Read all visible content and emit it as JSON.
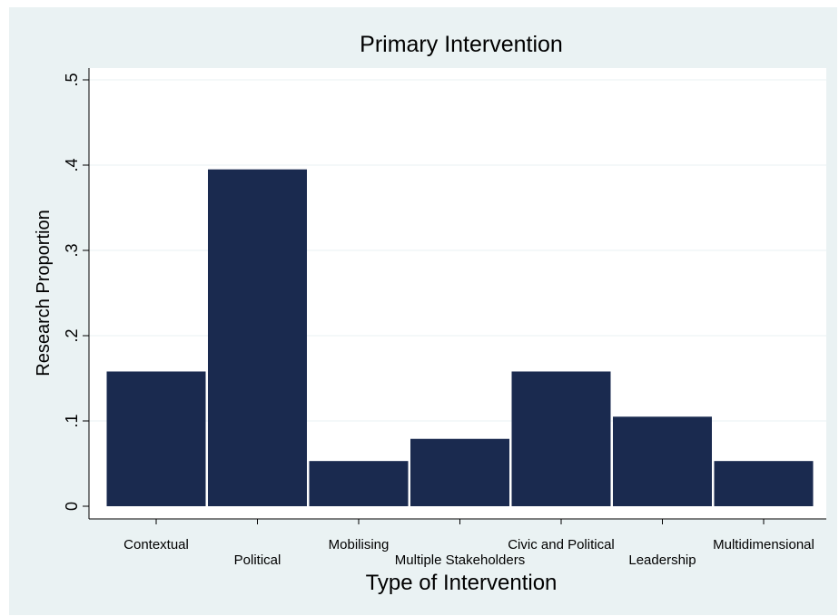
{
  "chart_data": {
    "type": "bar",
    "title": "Primary Intervention",
    "xlabel": "Type of Intervention",
    "ylabel": "Research Proportion",
    "categories": [
      "Contextual",
      "Political",
      "Mobilising",
      "Multiple Stakeholders",
      "Civic and Political",
      "Leadership",
      "Multidimensional"
    ],
    "values": [
      0.158,
      0.395,
      0.053,
      0.079,
      0.158,
      0.105,
      0.053
    ],
    "ylim": [
      0,
      0.5
    ],
    "yticks": [
      0,
      0.1,
      0.2,
      0.3,
      0.4,
      0.5
    ],
    "ytick_labels": [
      "0",
      ".1",
      ".2",
      ".3",
      ".4",
      ".5"
    ],
    "grid": true,
    "bar_color": "#1a2a4f",
    "plot_background": "#ffffff",
    "outer_background": "#eaf2f3"
  }
}
